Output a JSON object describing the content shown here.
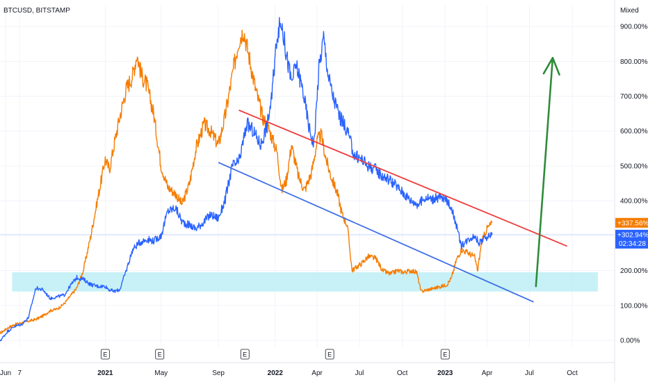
{
  "chart_data": {
    "type": "line",
    "title": "BTCUSD, BITSTAMP",
    "scale_mode": "Mixed",
    "y_unit": "%",
    "ylim": [
      -20,
      960
    ],
    "y_ticks": [
      {
        "value": 0,
        "label": "0.00%"
      },
      {
        "value": 100,
        "label": "100.00%"
      },
      {
        "value": 200,
        "label": "200.00%"
      },
      {
        "value": 300,
        "label": "300.00%"
      },
      {
        "value": 400,
        "label": "400.00%"
      },
      {
        "value": 500,
        "label": "500.00%"
      },
      {
        "value": 600,
        "label": "600.00%"
      },
      {
        "value": 700,
        "label": "700.00%"
      },
      {
        "value": 800,
        "label": "800.00%"
      },
      {
        "value": 900,
        "label": "900.00%"
      }
    ],
    "xlim": [
      "2020-05-20",
      "2023-12-31"
    ],
    "x_ticks": [
      {
        "date": "2020-06-01",
        "label": "Jun",
        "bold": false
      },
      {
        "date": "2020-07-01",
        "label": "7",
        "bold": false
      },
      {
        "date": "2021-01-01",
        "label": "2021",
        "bold": true
      },
      {
        "date": "2021-05-01",
        "label": "May",
        "bold": false
      },
      {
        "date": "2021-09-01",
        "label": "Sep",
        "bold": false
      },
      {
        "date": "2022-01-01",
        "label": "2022",
        "bold": true
      },
      {
        "date": "2022-04-01",
        "label": "Apr",
        "bold": false
      },
      {
        "date": "2022-07-01",
        "label": "Jul",
        "bold": false
      },
      {
        "date": "2022-10-01",
        "label": "Oct",
        "bold": false
      },
      {
        "date": "2023-01-01",
        "label": "2023",
        "bold": true
      },
      {
        "date": "2023-04-01",
        "label": "Apr",
        "bold": false
      },
      {
        "date": "2023-07-01",
        "label": "Jul",
        "bold": false
      },
      {
        "date": "2023-10-01",
        "label": "Oct",
        "bold": false
      }
    ],
    "earnings_markers": [
      {
        "date": "2021-01-01",
        "label": "E"
      },
      {
        "date": "2021-04-28",
        "label": "E"
      },
      {
        "date": "2021-10-28",
        "label": "E"
      },
      {
        "date": "2022-04-28",
        "label": "E"
      },
      {
        "date": "2023-01-01",
        "label": "E"
      }
    ],
    "series": [
      {
        "color": "#2962ff",
        "badge_text": "+302.94%",
        "countdown": "02:34:28",
        "points": [
          [
            "2020-05-20",
            -2
          ],
          [
            "2020-06-05",
            25
          ],
          [
            "2020-06-20",
            40
          ],
          [
            "2020-07-05",
            45
          ],
          [
            "2020-07-20",
            65
          ],
          [
            "2020-08-05",
            150
          ],
          [
            "2020-08-20",
            145
          ],
          [
            "2020-09-05",
            120
          ],
          [
            "2020-09-20",
            125
          ],
          [
            "2020-10-05",
            130
          ],
          [
            "2020-10-20",
            160
          ],
          [
            "2020-11-01",
            180
          ],
          [
            "2020-11-15",
            175
          ],
          [
            "2020-12-01",
            160
          ],
          [
            "2020-12-15",
            155
          ],
          [
            "2021-01-01",
            155
          ],
          [
            "2021-01-10",
            145
          ],
          [
            "2021-01-20",
            140
          ],
          [
            "2021-02-01",
            145
          ],
          [
            "2021-02-15",
            200
          ],
          [
            "2021-03-01",
            260
          ],
          [
            "2021-03-15",
            280
          ],
          [
            "2021-04-01",
            290
          ],
          [
            "2021-04-15",
            285
          ],
          [
            "2021-05-01",
            300
          ],
          [
            "2021-05-15",
            370
          ],
          [
            "2021-06-01",
            380
          ],
          [
            "2021-06-15",
            340
          ],
          [
            "2021-07-01",
            330
          ],
          [
            "2021-07-15",
            320
          ],
          [
            "2021-08-01",
            340
          ],
          [
            "2021-08-15",
            360
          ],
          [
            "2021-09-01",
            350
          ],
          [
            "2021-09-15",
            400
          ],
          [
            "2021-10-01",
            500
          ],
          [
            "2021-10-15",
            510
          ],
          [
            "2021-11-01",
            620
          ],
          [
            "2021-11-15",
            600
          ],
          [
            "2021-12-01",
            560
          ],
          [
            "2021-12-15",
            620
          ],
          [
            "2021-12-25",
            700
          ],
          [
            "2022-01-05",
            880
          ],
          [
            "2022-01-15",
            910
          ],
          [
            "2022-01-25",
            820
          ],
          [
            "2022-02-05",
            740
          ],
          [
            "2022-02-15",
            790
          ],
          [
            "2022-03-01",
            720
          ],
          [
            "2022-03-15",
            610
          ],
          [
            "2022-03-25",
            560
          ],
          [
            "2022-04-05",
            780
          ],
          [
            "2022-04-15",
            870
          ],
          [
            "2022-04-25",
            760
          ],
          [
            "2022-05-05",
            700
          ],
          [
            "2022-05-20",
            640
          ],
          [
            "2022-06-05",
            600
          ],
          [
            "2022-06-20",
            530
          ],
          [
            "2022-07-05",
            520
          ],
          [
            "2022-07-20",
            500
          ],
          [
            "2022-08-05",
            490
          ],
          [
            "2022-08-20",
            470
          ],
          [
            "2022-09-05",
            460
          ],
          [
            "2022-09-20",
            440
          ],
          [
            "2022-10-05",
            420
          ],
          [
            "2022-10-20",
            400
          ],
          [
            "2022-11-05",
            390
          ],
          [
            "2022-11-20",
            410
          ],
          [
            "2022-12-05",
            405
          ],
          [
            "2022-12-20",
            410
          ],
          [
            "2023-01-05",
            400
          ],
          [
            "2023-01-15",
            380
          ],
          [
            "2023-01-25",
            330
          ],
          [
            "2023-02-05",
            270
          ],
          [
            "2023-02-20",
            290
          ],
          [
            "2023-03-05",
            300
          ],
          [
            "2023-03-15",
            280
          ],
          [
            "2023-03-25",
            290
          ],
          [
            "2023-04-05",
            300
          ],
          [
            "2023-04-12",
            303
          ]
        ]
      },
      {
        "color": "#f57c00",
        "badge_text": "+337.56%",
        "points": [
          [
            "2020-05-20",
            20
          ],
          [
            "2020-06-05",
            35
          ],
          [
            "2020-06-20",
            45
          ],
          [
            "2020-07-05",
            50
          ],
          [
            "2020-07-20",
            55
          ],
          [
            "2020-08-05",
            60
          ],
          [
            "2020-08-20",
            70
          ],
          [
            "2020-09-05",
            85
          ],
          [
            "2020-09-20",
            90
          ],
          [
            "2020-10-05",
            105
          ],
          [
            "2020-10-20",
            130
          ],
          [
            "2020-11-01",
            150
          ],
          [
            "2020-11-15",
            200
          ],
          [
            "2020-12-01",
            300
          ],
          [
            "2020-12-15",
            400
          ],
          [
            "2021-01-01",
            520
          ],
          [
            "2021-01-10",
            490
          ],
          [
            "2021-01-20",
            560
          ],
          [
            "2021-02-01",
            640
          ],
          [
            "2021-02-15",
            720
          ],
          [
            "2021-03-01",
            760
          ],
          [
            "2021-03-10",
            820
          ],
          [
            "2021-03-20",
            760
          ],
          [
            "2021-04-01",
            730
          ],
          [
            "2021-04-15",
            650
          ],
          [
            "2021-05-01",
            500
          ],
          [
            "2021-05-15",
            440
          ],
          [
            "2021-06-01",
            420
          ],
          [
            "2021-06-15",
            390
          ],
          [
            "2021-07-01",
            450
          ],
          [
            "2021-07-15",
            550
          ],
          [
            "2021-08-01",
            620
          ],
          [
            "2021-08-15",
            600
          ],
          [
            "2021-09-01",
            560
          ],
          [
            "2021-09-15",
            640
          ],
          [
            "2021-10-01",
            760
          ],
          [
            "2021-10-15",
            860
          ],
          [
            "2021-10-25",
            890
          ],
          [
            "2021-11-05",
            820
          ],
          [
            "2021-11-20",
            720
          ],
          [
            "2021-12-05",
            640
          ],
          [
            "2021-12-20",
            600
          ],
          [
            "2022-01-05",
            540
          ],
          [
            "2022-01-15",
            430
          ],
          [
            "2022-01-25",
            460
          ],
          [
            "2022-02-05",
            560
          ],
          [
            "2022-02-20",
            470
          ],
          [
            "2022-03-05",
            430
          ],
          [
            "2022-03-20",
            480
          ],
          [
            "2022-04-01",
            570
          ],
          [
            "2022-04-10",
            590
          ],
          [
            "2022-04-20",
            520
          ],
          [
            "2022-05-01",
            470
          ],
          [
            "2022-05-15",
            420
          ],
          [
            "2022-05-25",
            360
          ],
          [
            "2022-06-05",
            330
          ],
          [
            "2022-06-15",
            200
          ],
          [
            "2022-06-25",
            210
          ],
          [
            "2022-07-05",
            220
          ],
          [
            "2022-07-20",
            240
          ],
          [
            "2022-08-05",
            235
          ],
          [
            "2022-08-20",
            200
          ],
          [
            "2022-09-05",
            190
          ],
          [
            "2022-09-20",
            200
          ],
          [
            "2022-10-05",
            195
          ],
          [
            "2022-10-20",
            200
          ],
          [
            "2022-11-01",
            195
          ],
          [
            "2022-11-10",
            140
          ],
          [
            "2022-11-25",
            145
          ],
          [
            "2022-12-10",
            150
          ],
          [
            "2022-12-25",
            155
          ],
          [
            "2023-01-05",
            160
          ],
          [
            "2023-01-15",
            180
          ],
          [
            "2023-01-25",
            230
          ],
          [
            "2023-02-05",
            260
          ],
          [
            "2023-02-20",
            250
          ],
          [
            "2023-03-05",
            240
          ],
          [
            "2023-03-12",
            200
          ],
          [
            "2023-03-20",
            280
          ],
          [
            "2023-04-01",
            320
          ],
          [
            "2023-04-12",
            337
          ]
        ]
      }
    ],
    "drawings": {
      "support_zone": {
        "x0": "2020-06-15",
        "x1": "2023-11-25",
        "y0": 140,
        "y1": 195,
        "color": "#bdeef5"
      },
      "upper_trend": {
        "from": [
          "2021-10-15",
          660
        ],
        "to": [
          "2023-09-20",
          270
        ],
        "color": "#ef3b3b"
      },
      "lower_trend": {
        "from": [
          "2021-09-01",
          510
        ],
        "to": [
          "2023-07-10",
          110
        ],
        "color": "#3d6fe8"
      },
      "projection_arrow": {
        "from": [
          "2023-07-15",
          155
        ],
        "to": [
          "2023-08-20",
          810
        ],
        "color": "#2e8b3a"
      },
      "price_line_level": 303
    }
  }
}
